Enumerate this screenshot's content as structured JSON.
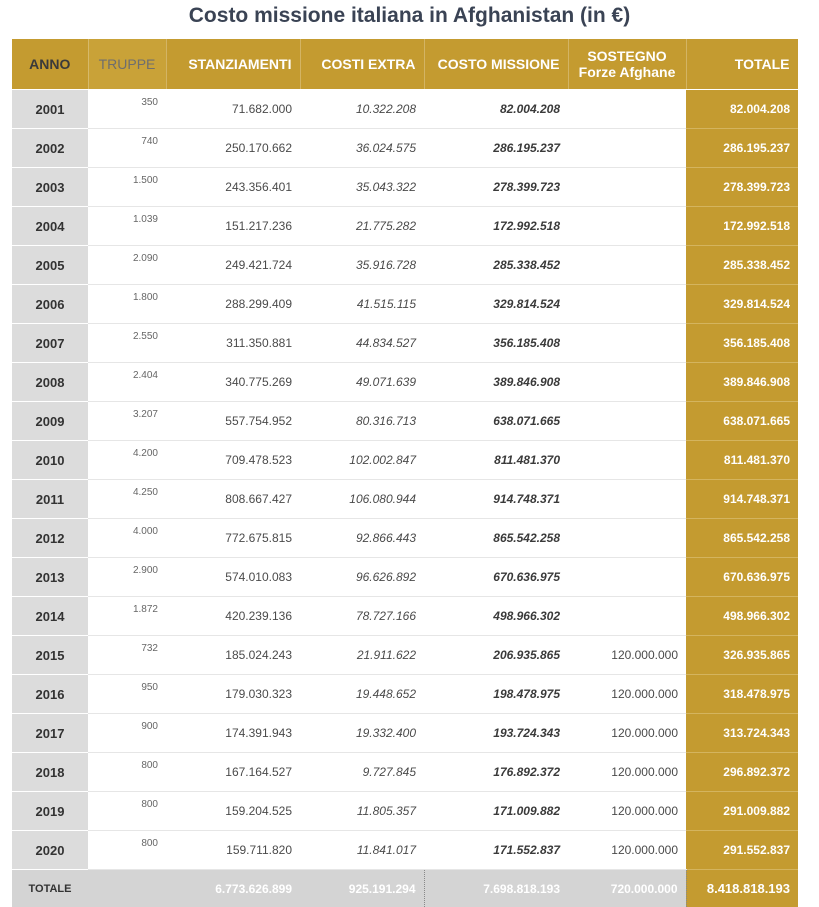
{
  "title": "Costo missione italiana in Afghanistan (in €)",
  "headers": {
    "anno": "ANNO",
    "truppe": "TRUPPE",
    "stanziamenti": "STANZIAMENTI",
    "costi_extra": "COSTI EXTRA",
    "costo_missione": "COSTO MISSIONE",
    "sostegno_line1": "SOSTEGNO",
    "sostegno_line2": "Forze Afghane",
    "totale": "TOTALE"
  },
  "rows": [
    {
      "anno": "2001",
      "truppe": "350",
      "stanziamenti": "71.682.000",
      "costi_extra": "10.322.208",
      "costo_missione": "82.004.208",
      "sostegno": "",
      "totale": "82.004.208"
    },
    {
      "anno": "2002",
      "truppe": "740",
      "stanziamenti": "250.170.662",
      "costi_extra": "36.024.575",
      "costo_missione": "286.195.237",
      "sostegno": "",
      "totale": "286.195.237"
    },
    {
      "anno": "2003",
      "truppe": "1.500",
      "stanziamenti": "243.356.401",
      "costi_extra": "35.043.322",
      "costo_missione": "278.399.723",
      "sostegno": "",
      "totale": "278.399.723"
    },
    {
      "anno": "2004",
      "truppe": "1.039",
      "stanziamenti": "151.217.236",
      "costi_extra": "21.775.282",
      "costo_missione": "172.992.518",
      "sostegno": "",
      "totale": "172.992.518"
    },
    {
      "anno": "2005",
      "truppe": "2.090",
      "stanziamenti": "249.421.724",
      "costi_extra": "35.916.728",
      "costo_missione": "285.338.452",
      "sostegno": "",
      "totale": "285.338.452"
    },
    {
      "anno": "2006",
      "truppe": "1.800",
      "stanziamenti": "288.299.409",
      "costi_extra": "41.515.115",
      "costo_missione": "329.814.524",
      "sostegno": "",
      "totale": "329.814.524"
    },
    {
      "anno": "2007",
      "truppe": "2.550",
      "stanziamenti": "311.350.881",
      "costi_extra": "44.834.527",
      "costo_missione": "356.185.408",
      "sostegno": "",
      "totale": "356.185.408"
    },
    {
      "anno": "2008",
      "truppe": "2.404",
      "stanziamenti": "340.775.269",
      "costi_extra": "49.071.639",
      "costo_missione": "389.846.908",
      "sostegno": "",
      "totale": "389.846.908"
    },
    {
      "anno": "2009",
      "truppe": "3.207",
      "stanziamenti": "557.754.952",
      "costi_extra": "80.316.713",
      "costo_missione": "638.071.665",
      "sostegno": "",
      "totale": "638.071.665"
    },
    {
      "anno": "2010",
      "truppe": "4.200",
      "stanziamenti": "709.478.523",
      "costi_extra": "102.002.847",
      "costo_missione": "811.481.370",
      "sostegno": "",
      "totale": "811.481.370"
    },
    {
      "anno": "2011",
      "truppe": "4.250",
      "stanziamenti": "808.667.427",
      "costi_extra": "106.080.944",
      "costo_missione": "914.748.371",
      "sostegno": "",
      "totale": "914.748.371"
    },
    {
      "anno": "2012",
      "truppe": "4.000",
      "stanziamenti": "772.675.815",
      "costi_extra": "92.866.443",
      "costo_missione": "865.542.258",
      "sostegno": "",
      "totale": "865.542.258"
    },
    {
      "anno": "2013",
      "truppe": "2.900",
      "stanziamenti": "574.010.083",
      "costi_extra": "96.626.892",
      "costo_missione": "670.636.975",
      "sostegno": "",
      "totale": "670.636.975"
    },
    {
      "anno": "2014",
      "truppe": "1.872",
      "stanziamenti": "420.239.136",
      "costi_extra": "78.727.166",
      "costo_missione": "498.966.302",
      "sostegno": "",
      "totale": "498.966.302"
    },
    {
      "anno": "2015",
      "truppe": "732",
      "stanziamenti": "185.024.243",
      "costi_extra": "21.911.622",
      "costo_missione": "206.935.865",
      "sostegno": "120.000.000",
      "totale": "326.935.865"
    },
    {
      "anno": "2016",
      "truppe": "950",
      "stanziamenti": "179.030.323",
      "costi_extra": "19.448.652",
      "costo_missione": "198.478.975",
      "sostegno": "120.000.000",
      "totale": "318.478.975"
    },
    {
      "anno": "2017",
      "truppe": "900",
      "stanziamenti": "174.391.943",
      "costi_extra": "19.332.400",
      "costo_missione": "193.724.343",
      "sostegno": "120.000.000",
      "totale": "313.724.343"
    },
    {
      "anno": "2018",
      "truppe": "800",
      "stanziamenti": "167.164.527",
      "costi_extra": "9.727.845",
      "costo_missione": "176.892.372",
      "sostegno": "120.000.000",
      "totale": "296.892.372"
    },
    {
      "anno": "2019",
      "truppe": "800",
      "stanziamenti": "159.204.525",
      "costi_extra": "11.805.357",
      "costo_missione": "171.009.882",
      "sostegno": "120.000.000",
      "totale": "291.009.882"
    },
    {
      "anno": "2020",
      "truppe": "800",
      "stanziamenti": "159.711.820",
      "costi_extra": "11.841.017",
      "costo_missione": "171.552.837",
      "sostegno": "120.000.000",
      "totale": "291.552.837"
    }
  ],
  "totals": {
    "label": "TOTALE",
    "stanziamenti": "6.773.626.899",
    "costi_extra": "925.191.294",
    "costo_missione": "7.698.818.193",
    "sostegno": "720.000.000",
    "totale": "8.418.818.193"
  },
  "colors": {
    "gold": "#c49b30",
    "grey_column": "#dcdcdc",
    "title": "#3a4354"
  }
}
